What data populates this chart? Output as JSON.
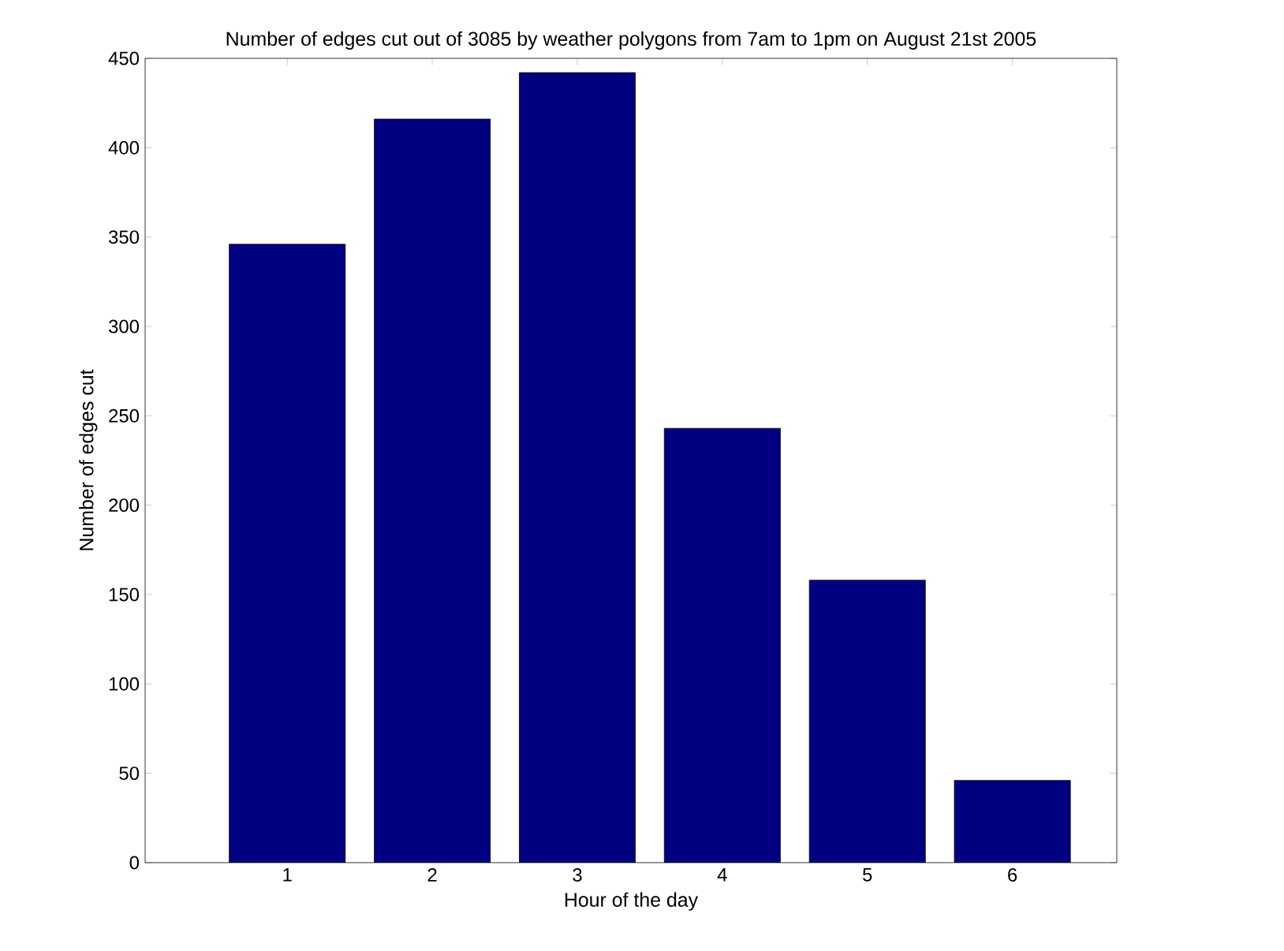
{
  "chart_data": {
    "type": "bar",
    "title": "Number of edges cut out of 3085 by weather polygons from 7am to 1pm on August 21st 2005",
    "xlabel": "Hour of the day",
    "ylabel": "Number of edges cut",
    "categories": [
      "1",
      "2",
      "3",
      "4",
      "5",
      "6"
    ],
    "values": [
      346,
      416,
      442,
      243,
      158,
      46
    ],
    "color": "#000080",
    "ylim": [
      0,
      450
    ],
    "yticks": [
      0,
      50,
      100,
      150,
      200,
      250,
      300,
      350,
      400,
      450
    ]
  }
}
